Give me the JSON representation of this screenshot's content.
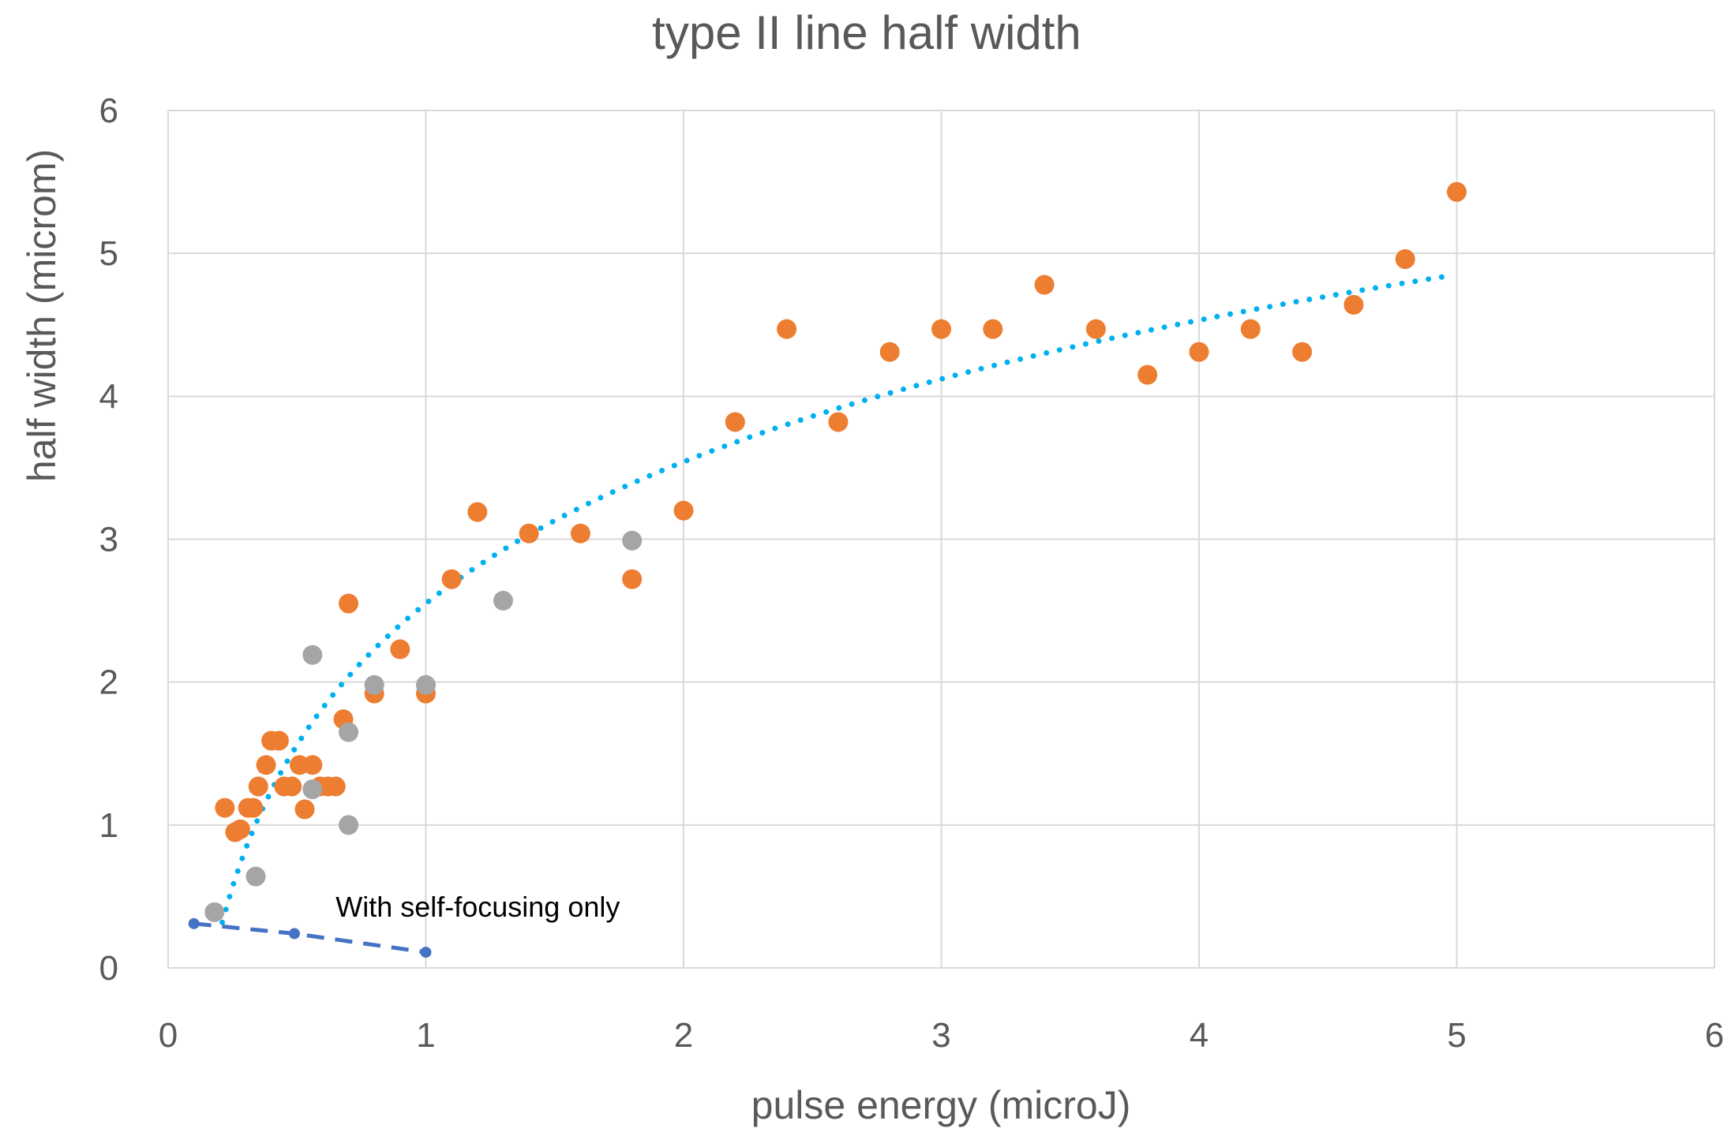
{
  "chart_data": {
    "type": "scatter",
    "title": "type II line half width",
    "xlabel": "pulse energy (microJ)",
    "ylabel": "half width (microm)",
    "xlim": [
      0,
      6
    ],
    "ylim": [
      0,
      6
    ],
    "xticks": [
      "0",
      "1",
      "2",
      "3",
      "4",
      "5",
      "6"
    ],
    "yticks": [
      "0",
      "1",
      "2",
      "3",
      "4",
      "5",
      "6"
    ],
    "grid": true,
    "series": [
      {
        "color": "#ED7D31",
        "marker": "circle",
        "x": [
          0.22,
          0.26,
          0.28,
          0.31,
          0.33,
          0.35,
          0.38,
          0.4,
          0.43,
          0.45,
          0.48,
          0.51,
          0.53,
          0.56,
          0.59,
          0.62,
          0.65,
          0.68,
          0.7,
          0.8,
          0.9,
          1.0,
          1.1,
          1.2,
          1.4,
          1.6,
          1.8,
          2.0,
          2.2,
          2.4,
          2.6,
          2.8,
          3.0,
          3.2,
          3.4,
          3.6,
          3.8,
          4.0,
          4.2,
          4.4,
          4.6,
          4.8,
          5.0
        ],
        "y": [
          1.12,
          0.95,
          0.97,
          1.12,
          1.12,
          1.27,
          1.42,
          1.59,
          1.59,
          1.27,
          1.27,
          1.42,
          1.11,
          1.42,
          1.27,
          1.27,
          1.27,
          1.74,
          2.55,
          1.92,
          2.23,
          1.92,
          2.72,
          3.19,
          3.04,
          3.04,
          2.72,
          3.2,
          3.82,
          4.47,
          3.82,
          4.31,
          4.47,
          4.47,
          4.78,
          4.47,
          4.15,
          4.31,
          4.47,
          4.31,
          4.64,
          4.96,
          5.43
        ]
      },
      {
        "color": "#A5A5A5",
        "marker": "circle",
        "x": [
          0.18,
          0.34,
          0.56,
          0.56,
          0.7,
          0.7,
          0.8,
          1.0,
          1.3,
          1.8
        ],
        "y": [
          0.39,
          0.64,
          2.19,
          1.25,
          1.65,
          1.0,
          1.98,
          1.98,
          2.57,
          2.99
        ]
      },
      {
        "color": "#4472C4",
        "marker": "small-circle",
        "line": "dashed",
        "x": [
          0.1,
          0.49,
          1.0
        ],
        "y": [
          0.31,
          0.24,
          0.11
        ]
      }
    ],
    "trendline": {
      "type": "logarithmic",
      "color": "#00B0F0",
      "style": "dotted",
      "coef_a": 1.43,
      "coef_b": 2.55,
      "x_range": [
        0.21,
        4.95
      ]
    },
    "annotations": [
      {
        "text": "With self-focusing only",
        "x": 0.65,
        "y": 0.36
      }
    ]
  }
}
